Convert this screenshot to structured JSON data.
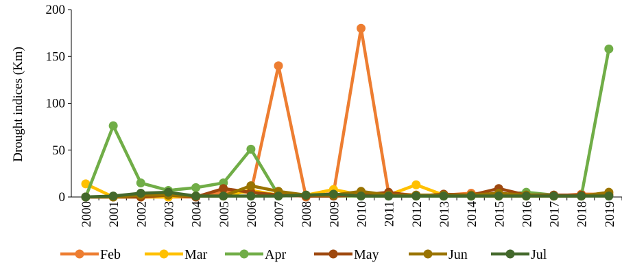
{
  "chart_data": {
    "type": "line",
    "title": "",
    "xlabel": "",
    "ylabel": "Drought indices (Km)",
    "ylim": [
      0,
      200
    ],
    "yticks": [
      "0",
      "50",
      "100",
      "150",
      "200"
    ],
    "grid": false,
    "legend_position": "bottom",
    "categories": [
      "2000",
      "2001",
      "2002",
      "2003",
      "2004",
      "2005",
      "2006",
      "2007",
      "2008",
      "2009",
      "2010",
      "2011",
      "2012",
      "2013",
      "2014",
      "2015",
      "2016",
      "2017",
      "2018",
      "2019"
    ],
    "series": [
      {
        "name": "Feb",
        "color": "#ED7D31",
        "values": [
          0,
          0,
          0,
          0,
          0,
          5,
          5,
          140,
          0,
          4,
          180,
          4,
          2,
          2,
          4,
          2,
          1,
          1,
          3,
          3
        ]
      },
      {
        "name": "Mar",
        "color": "#FFC000",
        "values": [
          14,
          0,
          0,
          0,
          1,
          1,
          7,
          2,
          2,
          8,
          2,
          2,
          13,
          2,
          1,
          1,
          1,
          1,
          1,
          5
        ]
      },
      {
        "name": "Apr",
        "color": "#70AD47",
        "values": [
          0,
          76,
          15,
          7,
          10,
          15,
          51,
          2,
          1,
          1,
          1,
          1,
          1,
          1,
          1,
          2,
          5,
          2,
          1,
          158
        ]
      },
      {
        "name": "May",
        "color": "#9E480E",
        "values": [
          0,
          0,
          0,
          2,
          0,
          9,
          5,
          2,
          1,
          1,
          2,
          5,
          1,
          3,
          2,
          9,
          2,
          2,
          2,
          2
        ]
      },
      {
        "name": "Jun",
        "color": "#997300",
        "values": [
          0,
          0,
          2,
          2,
          1,
          1,
          12,
          6,
          2,
          2,
          6,
          2,
          2,
          2,
          2,
          4,
          2,
          1,
          1,
          5
        ]
      },
      {
        "name": "Jul",
        "color": "#43682B",
        "values": [
          0,
          1,
          4,
          5,
          1,
          1,
          1,
          1,
          2,
          3,
          1,
          1,
          1,
          1,
          1,
          1,
          1,
          1,
          1,
          1
        ]
      }
    ]
  }
}
